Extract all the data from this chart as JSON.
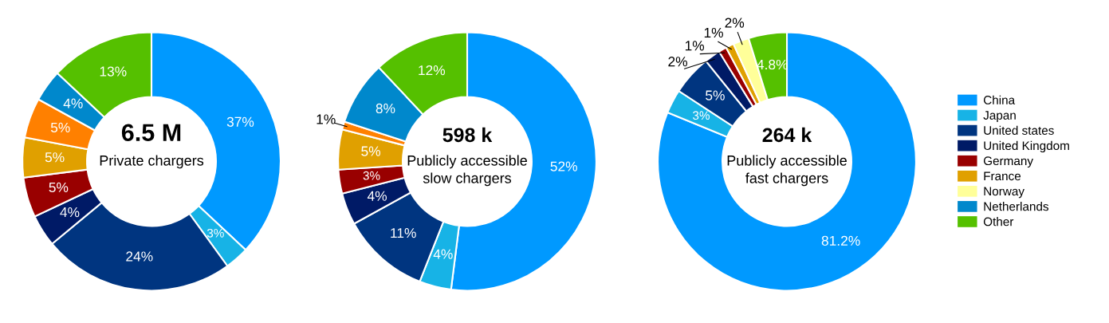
{
  "chart_data": [
    {
      "type": "donut",
      "title": "6.5 M",
      "subtitle": "Private chargers",
      "categories": [
        null,
        null,
        null,
        null,
        null,
        null,
        null,
        null,
        null
      ],
      "values": [
        37,
        3,
        24,
        4,
        5,
        5,
        5,
        4,
        13
      ],
      "colors": [
        "#0099ff",
        "#17b3e6",
        "#003580",
        "#001a66",
        "#990000",
        "#e0a000",
        "#ff8000",
        "#0088cc",
        "#55c000"
      ],
      "value_labels": [
        "37%",
        "3%",
        "24%",
        "4%",
        "5%",
        "5%",
        "5%",
        "4%",
        "13%"
      ]
    },
    {
      "type": "donut",
      "title": "598 k",
      "subtitle": "Publicly accessible\nslow chargers",
      "categories": [
        null,
        null,
        null,
        null,
        null,
        null,
        null,
        null,
        null
      ],
      "values": [
        52,
        4,
        11,
        4,
        3,
        5,
        1,
        8,
        12
      ],
      "colors": [
        "#0099ff",
        "#17b3e6",
        "#003580",
        "#001a66",
        "#990000",
        "#e0a000",
        "#ff8000",
        "#0088cc",
        "#55c000"
      ],
      "value_labels": [
        "52%",
        "4%",
        "11%",
        "4%",
        "3%",
        "5%",
        "1%",
        "8%",
        "12%"
      ]
    },
    {
      "type": "donut",
      "title": "264 k",
      "subtitle": "Publicly accessible\nfast chargers",
      "categories": [
        "China",
        "Japan",
        "United states",
        "United Kingdom",
        "Germany",
        "France",
        "Norway",
        "Netherlands",
        "Other"
      ],
      "values": [
        81.2,
        3,
        5,
        2,
        1,
        1,
        2,
        null,
        4.8
      ],
      "colors": [
        "#0099ff",
        "#17b3e6",
        "#003580",
        "#001a66",
        "#990000",
        "#e0a000",
        "#ffff99",
        "#0088cc",
        "#55c000"
      ],
      "value_labels": [
        "81.2%",
        "3%",
        "5%",
        "2%",
        "1%",
        "1%",
        "2%",
        null,
        "4.8%"
      ],
      "legend": "right"
    }
  ]
}
